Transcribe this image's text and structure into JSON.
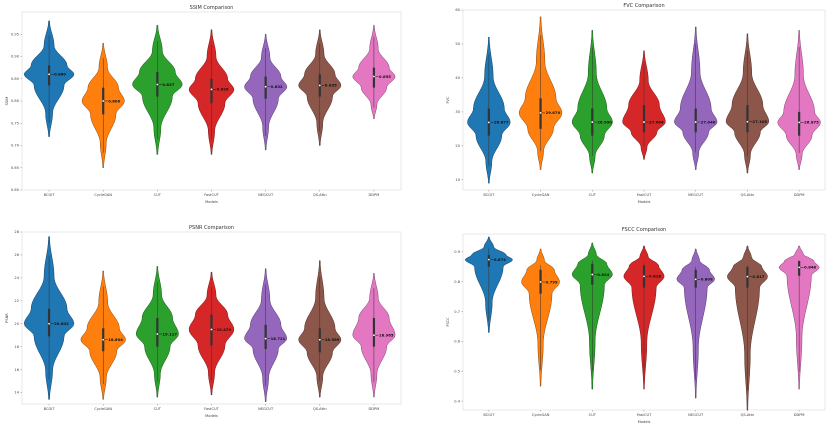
{
  "chart_data": [
    {
      "type": "violin",
      "title": "SSIM Comparison",
      "xlabel": "Models",
      "ylabel": "SSIM",
      "categories": [
        "BCGIT",
        "CycleGAN",
        "CUT",
        "FastCUT",
        "NEGCUT",
        "QS-Attn",
        "DDPM"
      ],
      "median_labels": [
        "0.860",
        "0.800",
        "0.837",
        "0.826",
        "0.832",
        "0.835",
        "0.855"
      ],
      "medians": [
        0.86,
        0.8,
        0.837,
        0.826,
        0.832,
        0.835,
        0.855
      ],
      "q1": [
        0.835,
        0.77,
        0.81,
        0.795,
        0.805,
        0.81,
        0.83
      ],
      "q3": [
        0.88,
        0.83,
        0.865,
        0.85,
        0.855,
        0.86,
        0.875
      ],
      "mins": [
        0.72,
        0.65,
        0.68,
        0.68,
        0.69,
        0.7,
        0.76
      ],
      "maxs": [
        0.98,
        0.93,
        0.97,
        0.96,
        0.95,
        0.96,
        0.97
      ],
      "spreads": [
        1.0,
        0.85,
        1.0,
        0.9,
        0.85,
        0.85,
        0.85
      ],
      "ylim": [
        0.6,
        1.0
      ],
      "yticks": [
        0.6,
        0.65,
        0.7,
        0.75,
        0.8,
        0.85,
        0.9,
        0.95
      ],
      "ytick_labels": [
        "0.60",
        "0.65",
        "0.70",
        "0.75",
        "0.80",
        "0.85",
        "0.90",
        "0.95"
      ],
      "colors": [
        "#1f77b4",
        "#ff7f0e",
        "#2ca02c",
        "#d62728",
        "#9467bd",
        "#8c564b",
        "#e377c2"
      ]
    },
    {
      "type": "violin",
      "title": "FVC Comparison",
      "xlabel": "Models",
      "ylabel": "FVC",
      "categories": [
        "BCGIT",
        "CycleGAN",
        "CUT",
        "FastCUT",
        "NEGCUT",
        "QS-Attn",
        "DDPM"
      ],
      "median_labels": [
        "26.877",
        "29.670",
        "26.990",
        "27.004",
        "27.040",
        "27.105",
        "26.875"
      ],
      "medians": [
        26.9,
        29.7,
        27.0,
        27.0,
        27.0,
        27.1,
        26.9
      ],
      "q1": [
        23,
        25,
        23,
        24,
        24,
        24,
        23
      ],
      "q3": [
        31,
        34,
        31,
        32,
        31,
        32,
        30
      ],
      "mins": [
        9,
        13,
        12,
        16,
        13,
        12,
        13
      ],
      "maxs": [
        52,
        58,
        54,
        48,
        55,
        53,
        54
      ],
      "spreads": [
        0.9,
        0.9,
        0.85,
        0.9,
        0.9,
        0.9,
        0.9
      ],
      "ylim": [
        7,
        60
      ],
      "yticks": [
        10,
        20,
        30,
        40,
        50,
        60
      ],
      "ytick_labels": [
        "10",
        "20",
        "30",
        "40",
        "50",
        "60"
      ],
      "colors": [
        "#1f77b4",
        "#ff7f0e",
        "#2ca02c",
        "#d62728",
        "#9467bd",
        "#8c564b",
        "#e377c2"
      ]
    },
    {
      "type": "violin",
      "title": "PSNR Comparison",
      "xlabel": "Models",
      "ylabel": "PSNR",
      "categories": [
        "BCGIT",
        "CycleGAN",
        "CUT",
        "FastCUT",
        "NEGCUT",
        "QS-Attn",
        "DDPM"
      ],
      "median_labels": [
        "20.002",
        "18.604",
        "19.117",
        "19.479",
        "18.721",
        "18.569",
        "18.965"
      ],
      "medians": [
        20.0,
        18.6,
        19.1,
        19.5,
        18.7,
        18.6,
        19.0
      ],
      "q1": [
        18.9,
        17.6,
        18.0,
        18.1,
        17.8,
        17.5,
        18.0
      ],
      "q3": [
        21.3,
        19.6,
        20.5,
        20.8,
        19.9,
        19.6,
        20.5
      ],
      "mins": [
        13.4,
        13.4,
        13.6,
        13.8,
        13.2,
        13.6,
        13.6
      ],
      "maxs": [
        27.6,
        24.6,
        25.0,
        24.5,
        24.8,
        25.5,
        24.4
      ],
      "spreads": [
        1.0,
        0.9,
        0.85,
        0.9,
        0.85,
        0.85,
        0.85
      ],
      "ylim": [
        13,
        28
      ],
      "yticks": [
        14,
        16,
        18,
        20,
        22,
        24,
        26,
        28
      ],
      "ytick_labels": [
        "14",
        "16",
        "18",
        "20",
        "22",
        "24",
        "26",
        "28"
      ],
      "colors": [
        "#1f77b4",
        "#ff7f0e",
        "#2ca02c",
        "#d62728",
        "#9467bd",
        "#8c564b",
        "#e377c2"
      ]
    },
    {
      "type": "violin",
      "title": "FSCC Comparison",
      "xlabel": "Models",
      "ylabel": "FSCC",
      "categories": [
        "BCGIT",
        "CycleGAN",
        "CUT",
        "FastCUT",
        "NEGCUT",
        "QS-Attn",
        "DDPM"
      ],
      "median_labels": [
        "0.874",
        "0.799",
        "0.824",
        "0.818",
        "0.808",
        "0.817",
        "0.848"
      ],
      "medians": [
        0.874,
        0.799,
        0.824,
        0.818,
        0.808,
        0.817,
        0.848
      ],
      "q1": [
        0.85,
        0.76,
        0.79,
        0.78,
        0.78,
        0.78,
        0.82
      ],
      "q3": [
        0.89,
        0.84,
        0.86,
        0.855,
        0.84,
        0.85,
        0.87
      ],
      "mins": [
        0.63,
        0.45,
        0.44,
        0.44,
        0.41,
        0.37,
        0.44
      ],
      "maxs": [
        0.95,
        0.91,
        0.93,
        0.92,
        0.91,
        0.92,
        0.92
      ],
      "spreads": [
        1.0,
        0.8,
        0.85,
        0.85,
        0.8,
        0.85,
        0.85
      ],
      "ylim": [
        0.37,
        0.96
      ],
      "yticks": [
        0.4,
        0.5,
        0.6,
        0.7,
        0.8,
        0.9
      ],
      "ytick_labels": [
        "0.4",
        "0.5",
        "0.6",
        "0.7",
        "0.8",
        "0.9"
      ],
      "colors": [
        "#1f77b4",
        "#ff7f0e",
        "#2ca02c",
        "#d62728",
        "#9467bd",
        "#8c564b",
        "#e377c2"
      ]
    }
  ]
}
